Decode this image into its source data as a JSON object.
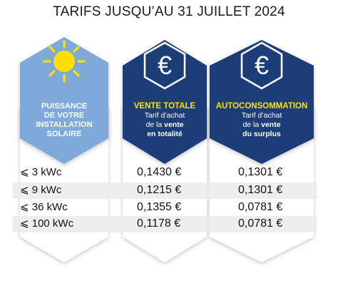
{
  "title": "TARIFS JUSQU’AU 31 JUILLET 2024",
  "columns": {
    "puissance": {
      "icon": "sun-icon",
      "line1": "PUISSANCE",
      "line2": "DE VOTRE",
      "line3": "INSTALLATION",
      "line4": "SOLAIRE",
      "color": "#7ea9d9"
    },
    "vente_totale": {
      "icon": "euro-icon",
      "symbol": "€",
      "heading": "VENTE TOTALE",
      "sub1": "Tarif d’achat",
      "sub2_plain": "de la ",
      "sub2_bold": "vente",
      "sub3": "en totalité",
      "color": "#1d3c78"
    },
    "autoconsommation": {
      "icon": "euro-icon",
      "symbol": "€",
      "heading": "AUTOCONSOMMATION",
      "sub1": "Tarif d’achat",
      "sub2_plain": "de la ",
      "sub2_bold": "vente",
      "sub3": "du surplus",
      "color": "#1d3c78"
    }
  },
  "accent_yellow": "#ffe000",
  "rows": [
    {
      "puissance": "⩽ 3 kWc",
      "vente_totale": "0,1430 €",
      "autoconsommation": "0,1301 €"
    },
    {
      "puissance": "⩽ 9 kWc",
      "vente_totale": "0,1215 €",
      "autoconsommation": "0,1301 €"
    },
    {
      "puissance": "⩽ 36 kWc",
      "vente_totale": "0,1355 €",
      "autoconsommation": "0,0781 €"
    },
    {
      "puissance": "⩽ 100 kWc",
      "vente_totale": "0,1178 €",
      "autoconsommation": "0,0781 €"
    }
  ]
}
